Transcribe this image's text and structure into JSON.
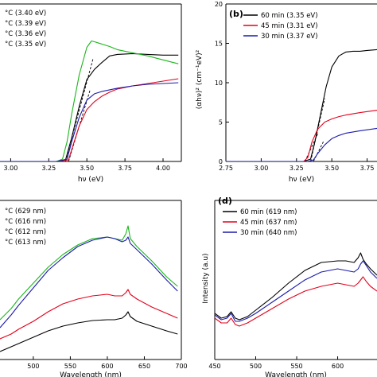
{
  "chart_data": [
    {
      "id": "a",
      "type": "line",
      "panel_label": "",
      "xlabel": "hν (eV)",
      "ylabel": "",
      "xlim": [
        2.93,
        4.12
      ],
      "ylim": [
        0,
        20
      ],
      "xticks": [
        "3.00",
        "3.25",
        "3.50",
        "3.75",
        "4.00"
      ],
      "yticks": [],
      "legend_position": "top-left",
      "series": [
        {
          "name": "°C (3.40 eV)",
          "color": "#000000",
          "x": [
            2.93,
            3.3,
            3.36,
            3.4,
            3.45,
            3.5,
            3.55,
            3.6,
            3.65,
            3.7,
            3.8,
            3.9,
            4.0,
            4.1
          ],
          "y": [
            0,
            0,
            0.2,
            3.0,
            7.0,
            10.4,
            11.7,
            12.6,
            13.4,
            13.6,
            13.7,
            13.6,
            13.5,
            13.5
          ]
        },
        {
          "name": "°C (3.39 eV)",
          "color": "#e3001b",
          "x": [
            2.93,
            3.3,
            3.38,
            3.4,
            3.45,
            3.5,
            3.55,
            3.6,
            3.65,
            3.7,
            3.8,
            3.9,
            4.0,
            4.1
          ],
          "y": [
            0,
            0,
            0.2,
            1.5,
            4.5,
            6.6,
            7.6,
            8.3,
            8.8,
            9.2,
            9.6,
            9.9,
            10.2,
            10.5
          ]
        },
        {
          "name": "°C (3.36 eV)",
          "color": "#1ab51a",
          "x": [
            2.93,
            3.3,
            3.34,
            3.37,
            3.4,
            3.45,
            3.5,
            3.53,
            3.55,
            3.6,
            3.65,
            3.7,
            3.8,
            3.9,
            4.0,
            4.1
          ],
          "y": [
            0,
            0,
            0.3,
            2.5,
            6.0,
            11.0,
            14.5,
            15.3,
            15.2,
            14.9,
            14.6,
            14.2,
            13.8,
            13.4,
            12.9,
            12.4
          ]
        },
        {
          "name": "°C (3.35 eV)",
          "color": "#1a1aad",
          "x": [
            2.93,
            3.3,
            3.37,
            3.4,
            3.45,
            3.5,
            3.55,
            3.6,
            3.65,
            3.7,
            3.8,
            3.9,
            4.0,
            4.1
          ],
          "y": [
            0,
            0,
            0.3,
            2.5,
            5.6,
            7.8,
            8.6,
            8.9,
            9.1,
            9.3,
            9.6,
            9.8,
            9.9,
            10.0
          ]
        }
      ],
      "fit_lines": [
        {
          "x": [
            3.36,
            3.54
          ],
          "y": [
            0,
            13
          ]
        },
        {
          "x": [
            3.38,
            3.52
          ],
          "y": [
            0,
            9
          ]
        }
      ]
    },
    {
      "id": "b",
      "type": "line",
      "panel_label": "(b)",
      "xlabel": "hν (eV)",
      "ylabel": "(αhν)² (cm⁻¹eV)²",
      "xlim": [
        2.75,
        3.82
      ],
      "ylim": [
        0,
        20
      ],
      "xticks": [
        "2.75",
        "3.00",
        "3.25",
        "3.50",
        "3.75"
      ],
      "yticks": [
        "0",
        "5",
        "10",
        "15",
        "20"
      ],
      "legend_position": "top-left",
      "series": [
        {
          "name": "60 min (3.35 eV)",
          "color": "#000000",
          "x": [
            2.75,
            3.3,
            3.35,
            3.38,
            3.42,
            3.46,
            3.5,
            3.55,
            3.6,
            3.65,
            3.7,
            3.75,
            3.82
          ],
          "y": [
            0,
            0,
            0.3,
            2.5,
            6.0,
            9.5,
            12.0,
            13.4,
            13.9,
            14.0,
            14.0,
            14.1,
            14.2
          ]
        },
        {
          "name": "45 min (3.31 eV)",
          "color": "#e3001b",
          "x": [
            2.75,
            3.3,
            3.33,
            3.36,
            3.4,
            3.45,
            3.5,
            3.55,
            3.6,
            3.7,
            3.82
          ],
          "y": [
            0,
            0,
            0.5,
            2.5,
            4.1,
            5.0,
            5.4,
            5.7,
            5.9,
            6.2,
            6.5
          ]
        },
        {
          "name": "30 min (3.37 eV)",
          "color": "#1a1aad",
          "x": [
            2.75,
            3.33,
            3.37,
            3.4,
            3.45,
            3.5,
            3.55,
            3.6,
            3.7,
            3.82
          ],
          "y": [
            0,
            0,
            0.2,
            1.0,
            2.1,
            2.9,
            3.3,
            3.6,
            3.9,
            4.2
          ]
        }
      ],
      "fit_lines": [
        {
          "x": [
            3.35,
            3.45
          ],
          "y": [
            0,
            8
          ]
        },
        {
          "x": [
            3.31,
            3.4
          ],
          "y": [
            0,
            3.5
          ]
        },
        {
          "x": [
            3.37,
            3.44
          ],
          "y": [
            0,
            2.5
          ]
        }
      ]
    },
    {
      "id": "c",
      "type": "line",
      "panel_label": "",
      "xlabel": "Wavelength (nm)",
      "ylabel": "",
      "xlim": [
        455,
        700
      ],
      "ylim": [
        0,
        10
      ],
      "xticks": [
        "500",
        "550",
        "600",
        "650",
        "700"
      ],
      "yticks": [],
      "legend_position": "top-left",
      "series": [
        {
          "name": "°C (629 nm)",
          "color": "#000000",
          "x": [
            455,
            470,
            480,
            500,
            520,
            540,
            560,
            580,
            600,
            610,
            620,
            625,
            628,
            631,
            640,
            660,
            680,
            695
          ],
          "y": [
            0.5,
            0.8,
            1.0,
            1.4,
            1.8,
            2.1,
            2.3,
            2.45,
            2.5,
            2.5,
            2.6,
            2.8,
            3.0,
            2.7,
            2.4,
            2.1,
            1.8,
            1.6
          ]
        },
        {
          "name": "°C (616 nm)",
          "color": "#e3001b",
          "x": [
            455,
            470,
            480,
            500,
            520,
            540,
            560,
            580,
            600,
            610,
            620,
            625,
            628,
            631,
            640,
            660,
            680,
            695
          ],
          "y": [
            1.3,
            1.6,
            1.9,
            2.4,
            3.0,
            3.5,
            3.8,
            4.0,
            4.1,
            4.0,
            4.0,
            4.2,
            4.4,
            4.1,
            3.8,
            3.3,
            2.9,
            2.6
          ]
        },
        {
          "name": "°C (612 nm)",
          "color": "#1ab51a",
          "x": [
            455,
            470,
            480,
            500,
            520,
            540,
            560,
            580,
            600,
            610,
            620,
            625,
            628,
            631,
            640,
            660,
            680,
            695
          ],
          "y": [
            2.5,
            3.2,
            3.8,
            4.8,
            5.8,
            6.6,
            7.2,
            7.6,
            7.7,
            7.6,
            7.5,
            7.9,
            8.4,
            7.6,
            7.1,
            6.2,
            5.2,
            4.6
          ]
        },
        {
          "name": "°C (613 nm)",
          "color": "#1a1aad",
          "x": [
            455,
            470,
            480,
            500,
            520,
            540,
            560,
            580,
            600,
            610,
            620,
            625,
            628,
            631,
            640,
            660,
            680,
            695
          ],
          "y": [
            2.0,
            2.8,
            3.4,
            4.5,
            5.6,
            6.4,
            7.1,
            7.5,
            7.7,
            7.6,
            7.4,
            7.5,
            7.7,
            7.3,
            6.9,
            6.0,
            5.0,
            4.3
          ]
        }
      ]
    },
    {
      "id": "d",
      "type": "line",
      "panel_label": "(d)",
      "xlabel": "Wavelength (nm)",
      "ylabel": "Intensity (a.u)",
      "xlim": [
        450,
        648
      ],
      "ylim": [
        0,
        10
      ],
      "xticks": [
        "450",
        "500",
        "550",
        "600"
      ],
      "yticks": [],
      "legend_position": "top-left",
      "series": [
        {
          "name": "60 min (619 nm)",
          "color": "#000000",
          "x": [
            450,
            458,
            465,
            470,
            475,
            480,
            490,
            500,
            520,
            540,
            560,
            580,
            600,
            610,
            620,
            625,
            628,
            631,
            635,
            640,
            648
          ],
          "y": [
            2.9,
            2.6,
            2.7,
            3.0,
            2.6,
            2.5,
            2.7,
            3.1,
            3.9,
            4.8,
            5.6,
            6.1,
            6.2,
            6.2,
            6.1,
            6.4,
            6.7,
            6.3,
            6.0,
            5.7,
            5.3
          ]
        },
        {
          "name": "45 min (637 nm)",
          "color": "#e3001b",
          "x": [
            450,
            458,
            465,
            470,
            475,
            480,
            490,
            500,
            520,
            540,
            560,
            580,
            600,
            610,
            620,
            625,
            628,
            631,
            635,
            640,
            648
          ],
          "y": [
            2.6,
            2.3,
            2.3,
            2.6,
            2.2,
            2.1,
            2.3,
            2.6,
            3.2,
            3.8,
            4.3,
            4.6,
            4.8,
            4.7,
            4.6,
            4.8,
            5.0,
            5.2,
            4.9,
            4.6,
            4.3
          ]
        },
        {
          "name": "30 min (640 nm)",
          "color": "#1a1aad",
          "x": [
            450,
            458,
            465,
            470,
            475,
            480,
            490,
            500,
            520,
            540,
            560,
            580,
            600,
            610,
            620,
            625,
            628,
            631,
            635,
            640,
            648
          ],
          "y": [
            2.8,
            2.5,
            2.6,
            2.9,
            2.4,
            2.4,
            2.6,
            2.9,
            3.6,
            4.3,
            5.0,
            5.5,
            5.7,
            5.6,
            5.5,
            5.7,
            6.0,
            6.2,
            5.9,
            5.5,
            5.1
          ]
        }
      ]
    }
  ]
}
